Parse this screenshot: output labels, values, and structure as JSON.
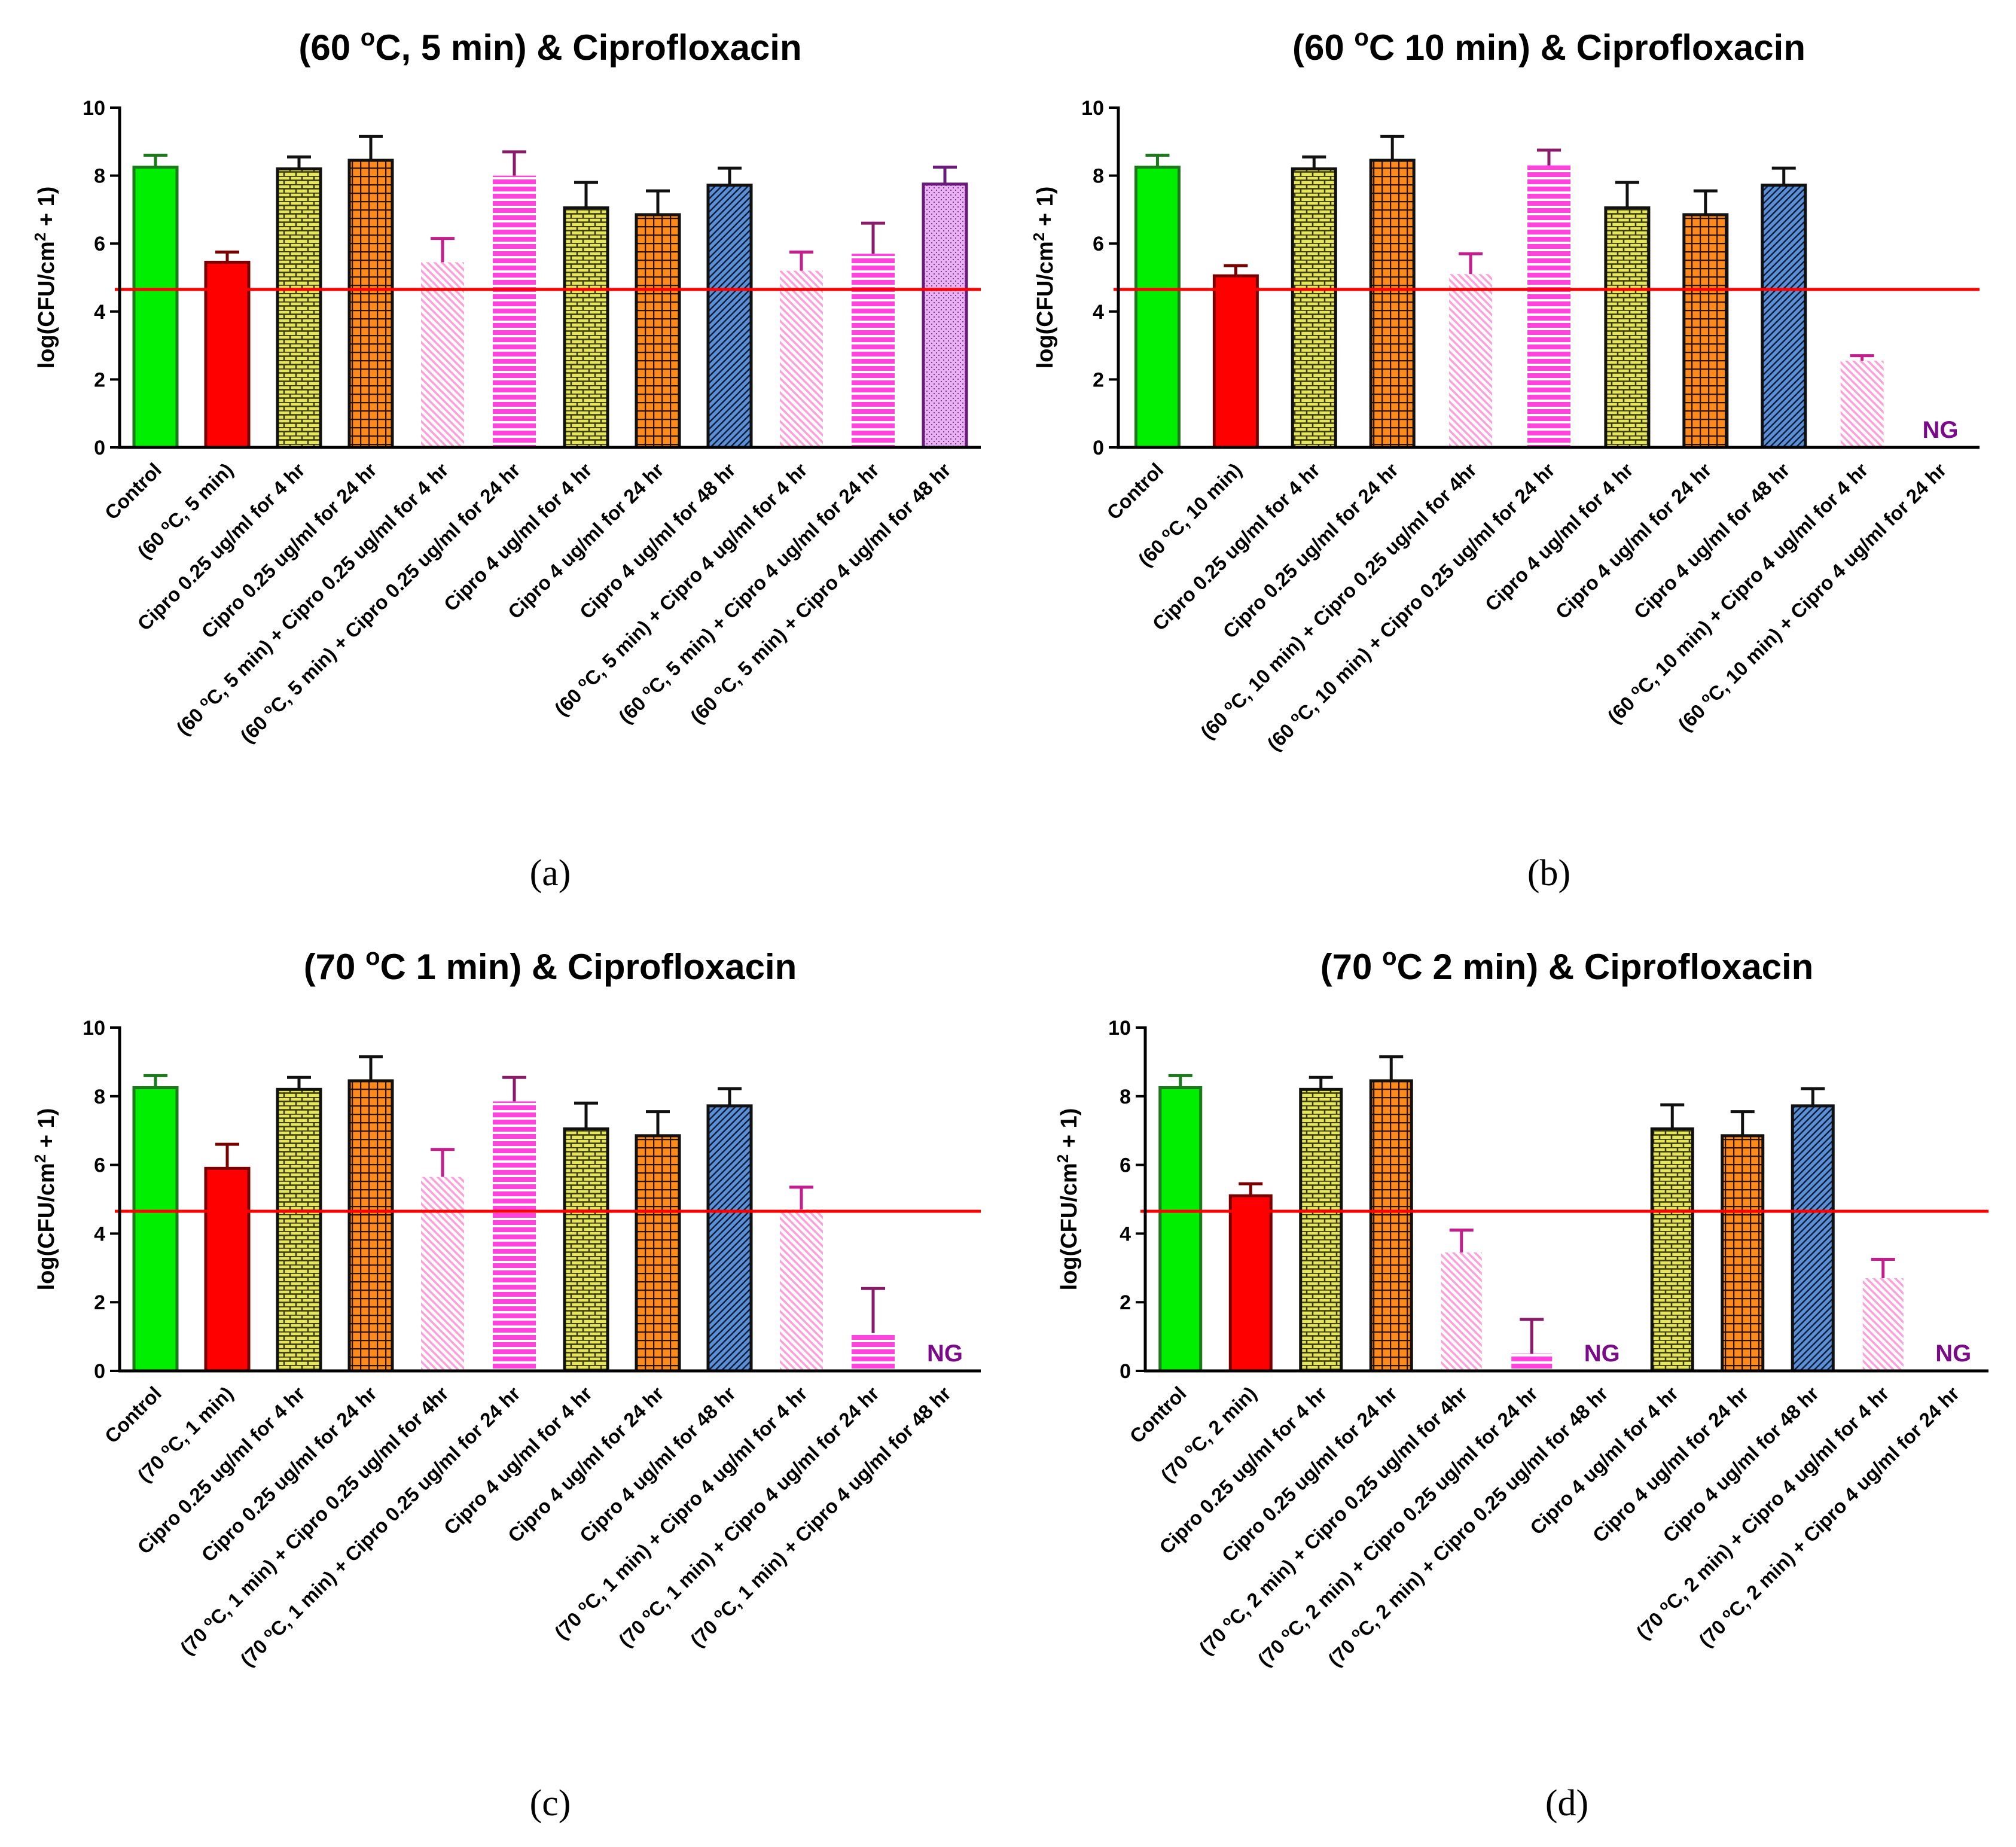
{
  "colors": {
    "control": "#00ee00",
    "heat": "#ff0000",
    "yellow": "#e6e65c",
    "orange": "#ff8a1c",
    "pink_light": "#ff9ed8",
    "magenta": "#ff44dd",
    "blue": "#5b8fd6",
    "lavender": "#e9b3f3",
    "threshold": "#ff0000",
    "ng_text": "#7a0a8a"
  },
  "chart_data": [
    {
      "type": "bar",
      "panel_label": "(a)",
      "title": {
        "pre": "(60 ",
        "sup": "o",
        "post": "C, 5 min) & Ciprofloxacin"
      },
      "ylabel": {
        "pre": "log(CFU/cm",
        "sup": "2",
        "post": " + 1)"
      },
      "ylim": [
        0,
        10
      ],
      "yticks": [
        "0",
        "2",
        "4",
        "6",
        "8",
        "10"
      ],
      "threshold": 4.65,
      "bars": [
        {
          "label": "Control",
          "value": 8.25,
          "error": 0.35,
          "style": "control"
        },
        {
          "label_parts": [
            "(60 ",
            "o",
            "C, 5 min)"
          ],
          "value": 5.45,
          "error": 0.3,
          "style": "heat"
        },
        {
          "label": "Cipro 0.25 ug/ml for 4 hr",
          "value": 8.2,
          "error": 0.35,
          "style": "yellow"
        },
        {
          "label": "Cipro 0.25 ug/ml for 24 hr",
          "value": 8.45,
          "error": 0.7,
          "style": "orange"
        },
        {
          "label_parts": [
            "(60 ",
            "o",
            "C, 5 min) + Cipro 0.25 ug/ml for 4 hr"
          ],
          "value": 5.45,
          "error": 0.7,
          "style": "pink"
        },
        {
          "label_parts": [
            "(60 ",
            "o",
            "C, 5 min) + Cipro 0.25 ug/ml for 24 hr"
          ],
          "value": 8.0,
          "error": 0.7,
          "style": "magenta"
        },
        {
          "label": "Cipro 4 ug/ml for 4 hr",
          "value": 7.05,
          "error": 0.75,
          "style": "yellow"
        },
        {
          "label": "Cipro 4 ug/ml for 24 hr",
          "value": 6.85,
          "error": 0.7,
          "style": "orange"
        },
        {
          "label": "Cipro 4 ug/ml for 48 hr",
          "value": 7.72,
          "error": 0.5,
          "style": "blue"
        },
        {
          "label_parts": [
            "(60 ",
            "o",
            "C, 5 min) + Cipro 4 ug/ml for 4 hr"
          ],
          "value": 5.2,
          "error": 0.55,
          "style": "pink"
        },
        {
          "label_parts": [
            "(60 ",
            "o",
            "C, 5 min) + Cipro 4 ug/ml for 24 hr"
          ],
          "value": 5.7,
          "error": 0.9,
          "style": "magenta"
        },
        {
          "label_parts": [
            "(60 ",
            "o",
            "C, 5 min) + Cipro 4 ug/ml for 48 hr"
          ],
          "value": 7.75,
          "error": 0.5,
          "style": "lavender"
        }
      ]
    },
    {
      "type": "bar",
      "panel_label": "(b)",
      "title": {
        "pre": "(60 ",
        "sup": "o",
        "post": "C 10 min) & Ciprofloxacin"
      },
      "ylabel": {
        "pre": "log(CFU/cm",
        "sup": "2",
        "post": " + 1)"
      },
      "ylim": [
        0,
        10
      ],
      "yticks": [
        "0",
        "2",
        "4",
        "6",
        "8",
        "10"
      ],
      "threshold": 4.65,
      "bars": [
        {
          "label": "Control",
          "value": 8.25,
          "error": 0.35,
          "style": "control"
        },
        {
          "label_parts": [
            "(60 ",
            "o",
            "C, 10 min)"
          ],
          "value": 5.05,
          "error": 0.3,
          "style": "heat"
        },
        {
          "label": "Cipro 0.25 ug/ml for 4 hr",
          "value": 8.2,
          "error": 0.35,
          "style": "yellow"
        },
        {
          "label": "Cipro 0.25 ug/ml for 24 hr",
          "value": 8.45,
          "error": 0.7,
          "style": "orange"
        },
        {
          "label_parts": [
            "(60 ",
            "o",
            "C, 10 min) + Cipro 0.25 ug/ml for 4hr"
          ],
          "value": 5.1,
          "error": 0.6,
          "style": "pink"
        },
        {
          "label_parts": [
            "(60 ",
            "o",
            "C, 10 min) + Cipro 0.25 ug/ml for 24 hr"
          ],
          "value": 8.3,
          "error": 0.45,
          "style": "magenta"
        },
        {
          "label": "Cipro 4 ug/ml for 4 hr",
          "value": 7.05,
          "error": 0.75,
          "style": "yellow"
        },
        {
          "label": "Cipro 4 ug/ml for 24 hr",
          "value": 6.85,
          "error": 0.7,
          "style": "orange"
        },
        {
          "label": "Cipro 4 ug/ml for 48 hr",
          "value": 7.72,
          "error": 0.5,
          "style": "blue"
        },
        {
          "label_parts": [
            "(60 ",
            "o",
            "C, 10 min) + Cipro 4 ug/ml for 4 hr"
          ],
          "value": 2.55,
          "error": 0.15,
          "style": "pink"
        },
        {
          "label_parts": [
            "(60 ",
            "o",
            "C, 10 min) + Cipro 4 ug/ml for 24 hr"
          ],
          "value": 0,
          "error": 0,
          "style": "none",
          "ng": "NG"
        }
      ]
    },
    {
      "type": "bar",
      "panel_label": "(c)",
      "title": {
        "pre": "(70 ",
        "sup": "o",
        "post": "C 1 min) & Ciprofloxacin"
      },
      "ylabel": {
        "pre": "log(CFU/cm",
        "sup": "2",
        "post": " + 1)"
      },
      "ylim": [
        0,
        10
      ],
      "yticks": [
        "0",
        "2",
        "4",
        "6",
        "8",
        "10"
      ],
      "threshold": 4.65,
      "bars": [
        {
          "label": "Control",
          "value": 8.25,
          "error": 0.35,
          "style": "control"
        },
        {
          "label_parts": [
            "(70 ",
            "o",
            "C, 1 min)"
          ],
          "value": 5.9,
          "error": 0.7,
          "style": "heat"
        },
        {
          "label": "Cipro 0.25 ug/ml for 4 hr",
          "value": 8.2,
          "error": 0.35,
          "style": "yellow"
        },
        {
          "label": "Cipro 0.25 ug/ml for 24 hr",
          "value": 8.45,
          "error": 0.7,
          "style": "orange"
        },
        {
          "label_parts": [
            "(70 ",
            "o",
            "C, 1 min) + Cipro 0.25 ug/ml for 4hr"
          ],
          "value": 5.65,
          "error": 0.8,
          "style": "pink"
        },
        {
          "label_parts": [
            "(70 ",
            "o",
            "C, 1 min) + Cipro 0.25 ug/ml for 24 hr"
          ],
          "value": 7.85,
          "error": 0.7,
          "style": "magenta"
        },
        {
          "label": "Cipro 4 ug/ml for 4 hr",
          "value": 7.05,
          "error": 0.75,
          "style": "yellow"
        },
        {
          "label": "Cipro 4 ug/ml for 24 hr",
          "value": 6.85,
          "error": 0.7,
          "style": "orange"
        },
        {
          "label": "Cipro 4 ug/ml for 48 hr",
          "value": 7.72,
          "error": 0.5,
          "style": "blue"
        },
        {
          "label_parts": [
            "(70 ",
            "o",
            "C, 1 min) + Cipro 4 ug/ml for 4 hr"
          ],
          "value": 4.7,
          "error": 0.65,
          "style": "pink"
        },
        {
          "label_parts": [
            "(70 ",
            "o",
            "C, 1 min) + Cipro 4 ug/ml for 24 hr"
          ],
          "value": 1.1,
          "error": 1.3,
          "style": "magenta"
        },
        {
          "label_parts": [
            "(70 ",
            "o",
            "C, 1 min) + Cipro 4 ug/ml for 48 hr"
          ],
          "value": 0,
          "error": 0,
          "style": "none",
          "ng": "NG"
        }
      ]
    },
    {
      "type": "bar",
      "panel_label": "(d)",
      "title": {
        "pre": "(70 ",
        "sup": "o",
        "post": "C 2 min) & Ciprofloxacin"
      },
      "ylabel": {
        "pre": "log(CFU/cm",
        "sup": "2",
        "post": " + 1)"
      },
      "ylim": [
        0,
        10
      ],
      "yticks": [
        "0",
        "2",
        "4",
        "6",
        "8",
        "10"
      ],
      "threshold": 4.65,
      "bars": [
        {
          "label": "Control",
          "value": 8.25,
          "error": 0.35,
          "style": "control"
        },
        {
          "label_parts": [
            "(70 ",
            "o",
            "C, 2 min)"
          ],
          "value": 5.1,
          "error": 0.35,
          "style": "heat"
        },
        {
          "label": "Cipro 0.25 ug/ml for 4 hr",
          "value": 8.2,
          "error": 0.35,
          "style": "yellow"
        },
        {
          "label": "Cipro 0.25 ug/ml for 24 hr",
          "value": 8.45,
          "error": 0.7,
          "style": "orange"
        },
        {
          "label_parts": [
            "(70 ",
            "o",
            "C, 2 min) + Cipro 0.25 ug/ml for 4hr"
          ],
          "value": 3.45,
          "error": 0.65,
          "style": "pink"
        },
        {
          "label_parts": [
            "(70 ",
            "o",
            "C, 2 min) + Cipro 0.25 ug/ml for 24 hr"
          ],
          "value": 0.5,
          "error": 1.0,
          "style": "magenta"
        },
        {
          "label_parts": [
            "(70 ",
            "o",
            "C, 2 min) + Cipro 0.25 ug/ml for 48 hr"
          ],
          "value": 0,
          "error": 0,
          "style": "none",
          "ng": "NG"
        },
        {
          "label": "Cipro 4 ug/ml for 4 hr",
          "value": 7.05,
          "error": 0.7,
          "style": "yellow"
        },
        {
          "label": "Cipro 4 ug/ml for 24 hr",
          "value": 6.85,
          "error": 0.7,
          "style": "orange"
        },
        {
          "label": "Cipro 4 ug/ml for 48 hr",
          "value": 7.72,
          "error": 0.5,
          "style": "blue"
        },
        {
          "label_parts": [
            "(70 ",
            "o",
            "C, 2 min) + Cipro 4 ug/ml for 4 hr"
          ],
          "value": 2.7,
          "error": 0.55,
          "style": "pink"
        },
        {
          "label_parts": [
            "(70 ",
            "o",
            "C, 2 min) + Cipro 4 ug/ml for 24 hr"
          ],
          "value": 0,
          "error": 0,
          "style": "none",
          "ng": "NG"
        }
      ]
    }
  ]
}
